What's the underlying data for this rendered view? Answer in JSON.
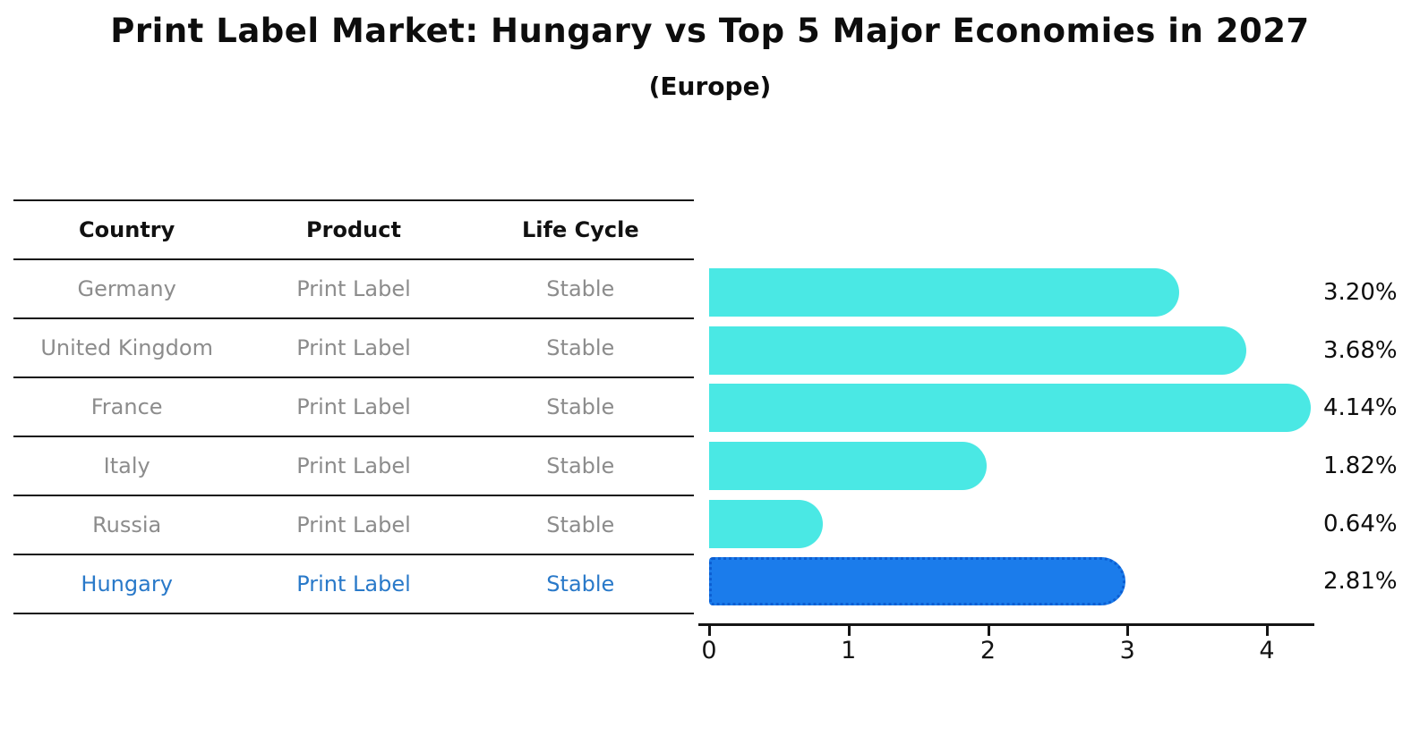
{
  "title": "Print Label Market: Hungary vs Top 5 Major Economies in 2027",
  "subtitle": "(Europe)",
  "table": {
    "headers": [
      "Country",
      "Product",
      "Life Cycle"
    ],
    "rows": [
      {
        "country": "Germany",
        "product": "Print Label",
        "life_cycle": "Stable",
        "highlight": false
      },
      {
        "country": "United Kingdom",
        "product": "Print Label",
        "life_cycle": "Stable",
        "highlight": false
      },
      {
        "country": "France",
        "product": "Print Label",
        "life_cycle": "Stable",
        "highlight": false
      },
      {
        "country": "Italy",
        "product": "Print Label",
        "life_cycle": "Stable",
        "highlight": false
      },
      {
        "country": "Russia",
        "product": "Print Label",
        "life_cycle": "Stable",
        "highlight": false
      },
      {
        "country": "Hungary",
        "product": "Print Label",
        "life_cycle": "Stable",
        "highlight": true
      }
    ]
  },
  "chart_data": {
    "type": "bar",
    "orientation": "horizontal",
    "title": "Print Label Market: Hungary vs Top 5 Major Economies in 2027",
    "subtitle": "(Europe)",
    "categories": [
      "Germany",
      "United Kingdom",
      "France",
      "Italy",
      "Russia",
      "Hungary"
    ],
    "values": [
      3.2,
      3.68,
      4.14,
      1.82,
      0.64,
      2.81
    ],
    "value_labels": [
      "3.20%",
      "3.68%",
      "4.14%",
      "1.82%",
      "0.64%",
      "2.81%"
    ],
    "unit": "percent",
    "x_ticks": [
      0,
      1,
      2,
      3,
      4
    ],
    "xlim": [
      0,
      4.4
    ],
    "grid": false,
    "legend": false,
    "highlight_index": 5,
    "bar_color": "#4AE8E4",
    "highlight_color": "#1B7CEB",
    "highlight_border_color": "#0C5ED2",
    "axis_color": "#141414",
    "value_label_color": "#0d0d0d",
    "row_text_color": "#8C8C8C",
    "highlight_text_color": "#2979C9"
  }
}
